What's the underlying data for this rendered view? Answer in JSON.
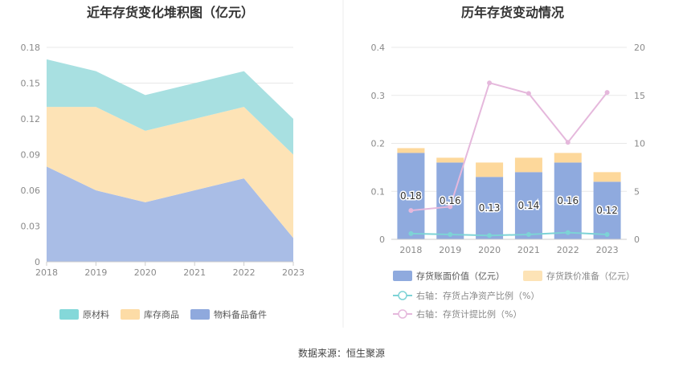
{
  "left_chart": {
    "title": "近年存货变化堆积图（亿元）",
    "legend": [
      "原材料",
      "库存商品",
      "物料备品备件"
    ]
  },
  "right_chart": {
    "title": "历年存货变动情况",
    "legend": {
      "bar1": "存货账面价值（亿元）",
      "bar2": "存货跌价准备（亿元）",
      "line1": "右轴：存货占净资产比例（%）",
      "line2": "右轴：存货计提比例（%）"
    }
  },
  "source": "数据来源：恒生聚源",
  "colors": {
    "raw_material": "#a8e0e1",
    "finished_goods": "#fde3b6",
    "spare_parts": "#a9bde6",
    "book_value": "#8faade",
    "impairment": "#fdd89b",
    "ratio_net_assets": "#7dd3d6",
    "provision_ratio": "#e5b8dc",
    "grid": "#e8e8e8",
    "axis": "#cccccc"
  },
  "chart_data": [
    {
      "type": "area",
      "stacked": true,
      "title": "近年存货变化堆积图（亿元）",
      "categories": [
        "2018",
        "2019",
        "2020",
        "2021",
        "2022",
        "2023"
      ],
      "series": [
        {
          "name": "物料备品备件",
          "values": [
            0.08,
            0.06,
            0.05,
            0.06,
            0.07,
            0.02
          ]
        },
        {
          "name": "库存商品",
          "values": [
            0.05,
            0.07,
            0.06,
            0.06,
            0.06,
            0.07
          ]
        },
        {
          "name": "原材料",
          "values": [
            0.04,
            0.03,
            0.03,
            0.03,
            0.03,
            0.03
          ]
        }
      ],
      "y_ticks": [
        "0",
        "0.03",
        "0.06",
        "0.09",
        "0.12",
        "0.15",
        "0.18"
      ],
      "ylim": [
        0,
        0.18
      ],
      "legend_position": "bottom"
    },
    {
      "type": "bar+line",
      "title": "历年存货变动情况",
      "categories": [
        "2018",
        "2019",
        "2020",
        "2021",
        "2022",
        "2023"
      ],
      "bar_series": [
        {
          "name": "存货账面价值（亿元）",
          "values": [
            0.18,
            0.16,
            0.13,
            0.14,
            0.16,
            0.12
          ],
          "labels": [
            "0.18",
            "0.16",
            "0.13",
            "0.14",
            "0.16",
            "0.12"
          ]
        },
        {
          "name": "存货跌价准备（亿元）",
          "values": [
            0.01,
            0.01,
            0.03,
            0.03,
            0.02,
            0.02
          ]
        }
      ],
      "line_series": [
        {
          "name": "右轴：存货占净资产比例（%）",
          "axis": "right",
          "values": [
            0.6,
            0.5,
            0.4,
            0.5,
            0.7,
            0.5
          ]
        },
        {
          "name": "右轴：存货计提比例（%）",
          "axis": "right",
          "values": [
            3.0,
            3.4,
            16.3,
            15.2,
            10.1,
            15.3
          ]
        }
      ],
      "y_left_ticks": [
        "0",
        "0.1",
        "0.2",
        "0.3",
        "0.4"
      ],
      "y_right_ticks": [
        "0",
        "5",
        "10",
        "15",
        "20"
      ],
      "ylim_left": [
        0,
        0.4
      ],
      "ylim_right": [
        0,
        20
      ],
      "legend_position": "bottom"
    }
  ]
}
